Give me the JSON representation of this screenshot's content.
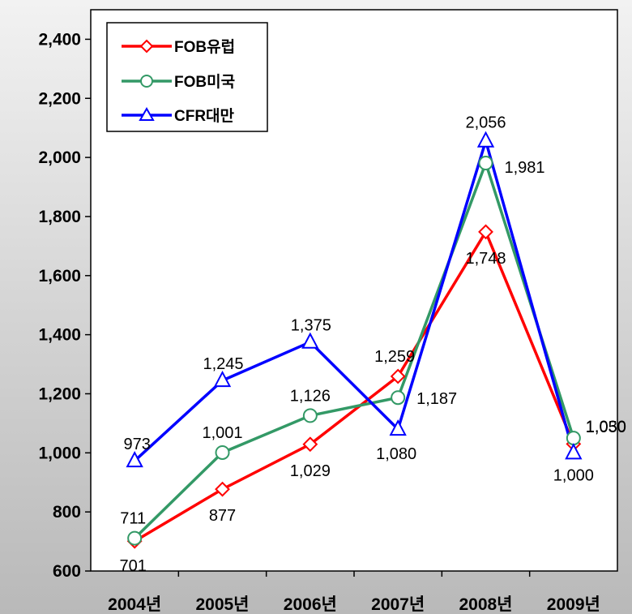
{
  "chart_data": {
    "type": "line",
    "categories": [
      "2004년",
      "2005년",
      "2006년",
      "2007년",
      "2008년",
      "2009년"
    ],
    "ylim": [
      600,
      2500
    ],
    "yticks": [
      "600",
      "800",
      "1,000",
      "1,200",
      "1,400",
      "1,600",
      "1,800",
      "2,000",
      "2,200",
      "2,400"
    ],
    "grid": false,
    "legend_position": "top-left",
    "series": [
      {
        "name": "FOB유럽",
        "color": "#ff0000",
        "marker": "diamond",
        "values": [
          701,
          877,
          1029,
          1259,
          1748,
          1030
        ],
        "labels": [
          "701",
          "877",
          "1,029",
          "1,259",
          "1,748",
          "1,030"
        ]
      },
      {
        "name": "FOB미국",
        "color": "#339966",
        "marker": "circle",
        "values": [
          711,
          1001,
          1126,
          1187,
          1981,
          1050
        ],
        "labels": [
          "711",
          "1,001",
          "1,126",
          "1,187",
          "1,981",
          "1,050"
        ]
      },
      {
        "name": "CFR대만",
        "color": "#0000ff",
        "marker": "triangle",
        "values": [
          973,
          1245,
          1375,
          1080,
          2056,
          1000
        ],
        "labels": [
          "973",
          "1,245",
          "1,375",
          "1,080",
          "2,056",
          "1,000"
        ]
      }
    ]
  }
}
